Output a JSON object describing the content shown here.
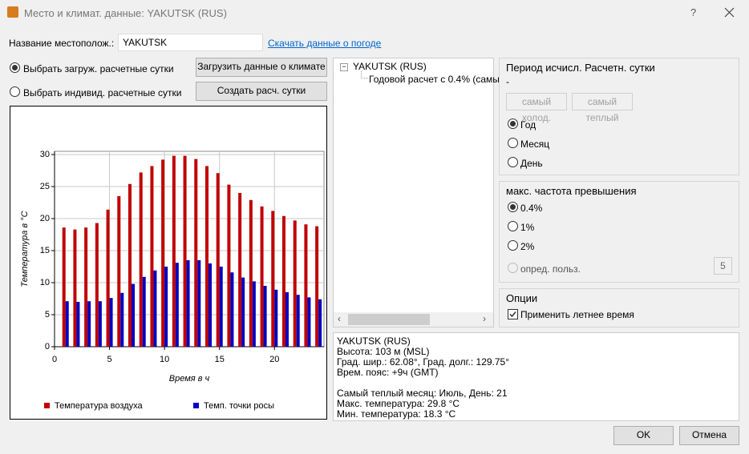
{
  "window": {
    "title": "Место и климат. данные: YAKUTSK (RUS)",
    "help": "?"
  },
  "location": {
    "label": "Название местополож.:",
    "value": "YAKUTSK",
    "link": "Скачать данные о погоде"
  },
  "options": {
    "design_days": "Выбрать загруж. расчетные сутки",
    "custom_days": "Выбрать индивид. расчетные сутки",
    "load_button": "Загрузить данные о климате",
    "create_button": "Создать расч. сутки"
  },
  "tree": {
    "root": "YAKUTSK (RUS)",
    "child": "Годовой расчет с 0.4% (самы"
  },
  "period": {
    "title": "Период исчисл. Расчетн. сутки",
    "dash": "-",
    "coldest": "самый холод.",
    "warmest": "самый теплый",
    "radios": [
      "Год",
      "Месяц",
      "День"
    ]
  },
  "frequency": {
    "title": "макс. частота превышения",
    "radios": [
      "0.4%",
      "1%",
      "2%",
      "опред. польз."
    ],
    "custom_value": "5"
  },
  "settings": {
    "title": "Опции",
    "daylight": "Применить летнее время"
  },
  "info": {
    "location_lines": [
      "YAKUTSK  (RUS)",
      "Высота: 103 м (MSL)",
      "Град. шир.: 62.08°, Град. долг.: 129.75°",
      "Врем. пояс: +9ч (GMT)"
    ],
    "summary_lines": [
      "Самый теплый месяц: Июль, День: 21",
      "Макс. температура: 29.8 °C",
      "Мин. температура: 18.3 °C"
    ]
  },
  "buttons": {
    "ok": "OK",
    "cancel": "Отмена"
  },
  "chart_data": {
    "type": "bar",
    "x_label": "Время в ч",
    "y_label": "Температура в °C",
    "x": [
      1,
      2,
      3,
      4,
      5,
      6,
      7,
      8,
      9,
      10,
      11,
      12,
      13,
      14,
      15,
      16,
      17,
      18,
      19,
      20,
      21,
      22,
      23,
      24
    ],
    "series": [
      {
        "name": "Температура воздуха",
        "color": "#c00000",
        "values": [
          18.6,
          18.3,
          18.6,
          19.3,
          21.4,
          23.5,
          25.4,
          27.2,
          28.2,
          29.2,
          29.8,
          29.8,
          29.3,
          28.2,
          27.1,
          25.3,
          24.0,
          22.9,
          21.9,
          21.2,
          20.4,
          19.7,
          19.1,
          18.8
        ]
      },
      {
        "name": "Темп. точки росы",
        "color": "#0000c0",
        "values": [
          7.1,
          7.0,
          7.1,
          7.1,
          7.6,
          8.4,
          9.8,
          10.9,
          11.9,
          12.5,
          13.1,
          13.5,
          13.5,
          13.0,
          12.5,
          11.6,
          10.8,
          10.2,
          9.5,
          8.9,
          8.5,
          8.1,
          7.7,
          7.4
        ]
      }
    ],
    "xlim": [
      0,
      24.5
    ],
    "xticks": [
      0,
      5,
      10,
      15,
      20
    ],
    "ylim": [
      0,
      30.5
    ],
    "yticks": [
      0,
      5,
      10,
      15,
      20,
      25,
      30
    ],
    "grid": true,
    "legend": "bottom"
  }
}
